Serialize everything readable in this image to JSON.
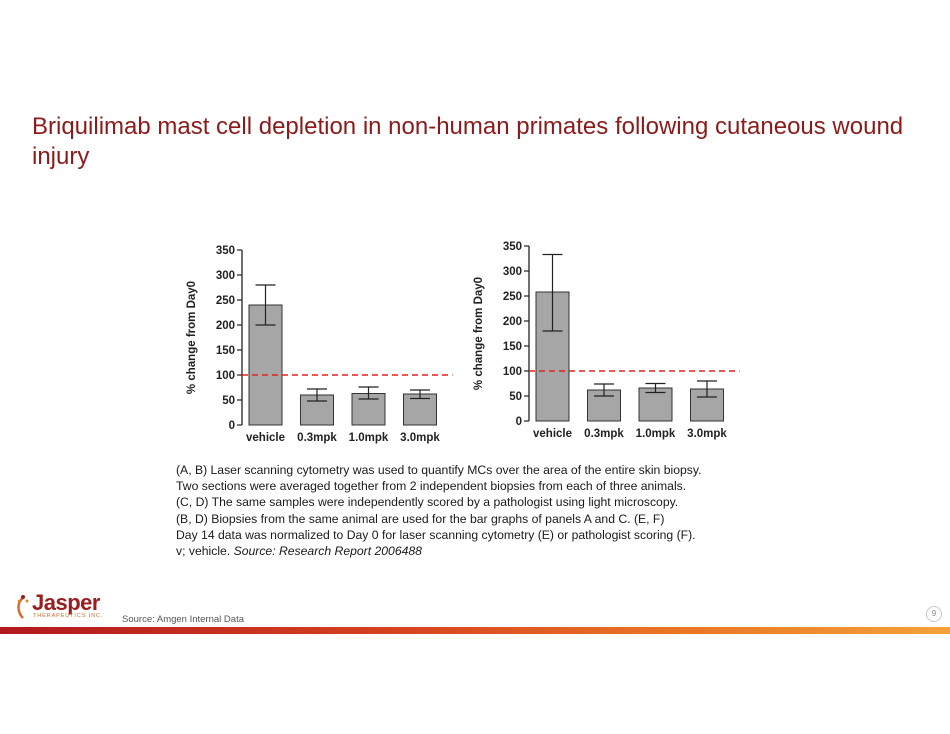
{
  "slide": {
    "title": "Briquilimab mast cell depletion in non-human primates following cutaneous wound injury",
    "caption_lines": [
      "(A, B) Laser scanning cytometry was used to quantify MCs over the area of the entire skin biopsy.",
      "Two sections were averaged together from 2 independent biopsies from each of three animals.",
      "(C, D)  The same samples were independently scored by a pathologist using light microscopy.",
      "(B, D)  Biopsies from the same animal are used for the bar graphs of panels A and C.  (E, F)",
      "Day 14 data was normalized to Day 0 for laser scanning cytometry (E) or pathologist scoring (F)."
    ],
    "caption_last_prefix": "v; vehicle. ",
    "caption_last_source": "Source: Research Report 2006488",
    "footer_source": "Source: Amgen Internal Data",
    "page_number": "9",
    "logo_text": "Jasper",
    "logo_subtext": "THERAPEUTICS INC."
  },
  "colors": {
    "title": "#8B1A1A",
    "bar_fill": "#a6a6a6",
    "reference_line": "#e2231a"
  },
  "chart_data": [
    {
      "type": "bar",
      "categories": [
        "vehicle",
        "0.3mpk",
        "1.0mpk",
        "3.0mpk"
      ],
      "values": [
        240,
        60,
        63,
        62
      ],
      "error_low": [
        200,
        48,
        52,
        53
      ],
      "error_high": [
        280,
        72,
        76,
        70
      ],
      "reference_line": 100,
      "ylabel": "% change from Day0",
      "ylim": [
        0,
        350
      ],
      "yticks": [
        0,
        50,
        100,
        150,
        200,
        250,
        300,
        350
      ]
    },
    {
      "type": "bar",
      "categories": [
        "vehicle",
        "0.3mpk",
        "1.0mpk",
        "3.0mpk"
      ],
      "values": [
        258,
        62,
        66,
        64
      ],
      "error_low": [
        180,
        50,
        57,
        48
      ],
      "error_high": [
        333,
        74,
        75,
        80
      ],
      "reference_line": 100,
      "ylabel": "% change from Day0",
      "ylim": [
        0,
        350
      ],
      "yticks": [
        0,
        50,
        100,
        150,
        200,
        250,
        300,
        350
      ]
    }
  ]
}
